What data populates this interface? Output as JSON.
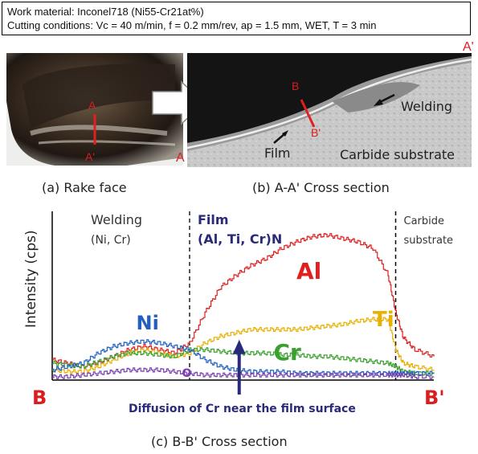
{
  "header": {
    "line1": "Work material:  Inconel718 (Ni55-Cr21at%)",
    "line2": "Cutting conditions: Vc = 40 m/min, f = 0.2 mm/rev, ap = 1.5 mm, WET, T = 3 min"
  },
  "panel_a": {
    "label_a": "A",
    "label_a_prime": "A'",
    "caption": "(a) Rake face"
  },
  "panel_b": {
    "label_a_left": "A",
    "label_a_prime_right": "A'",
    "label_b": "B",
    "label_b_prime": "B'",
    "welding": "Welding",
    "film": "Film",
    "substrate": "Carbide substrate",
    "caption": "(b) A-A' Cross section"
  },
  "chart_data": {
    "type": "line",
    "title": "",
    "xlabel": "",
    "ylabel": "Intensity (cps)",
    "x_start_label": "B",
    "x_end_label": "B'",
    "regions": [
      {
        "name": "Welding",
        "sub": "(Ni, Cr)",
        "x_from": 0.08,
        "x_to": 0.36
      },
      {
        "name": "Film",
        "sub": "(Al, Ti, Cr)N",
        "x_from": 0.36,
        "x_to": 0.9
      },
      {
        "name": "Carbide",
        "sub": "substrate",
        "x_from": 0.9,
        "x_to": 1.0
      }
    ],
    "series": [
      {
        "name": "Al",
        "color": "#e02020",
        "x": [
          0.0,
          0.04,
          0.08,
          0.12,
          0.16,
          0.2,
          0.24,
          0.28,
          0.32,
          0.36,
          0.4,
          0.44,
          0.48,
          0.52,
          0.56,
          0.6,
          0.64,
          0.68,
          0.72,
          0.76,
          0.8,
          0.84,
          0.88,
          0.9,
          0.92,
          0.95,
          1.0
        ],
        "values": [
          12,
          10,
          8,
          10,
          14,
          18,
          20,
          18,
          16,
          22,
          40,
          55,
          62,
          68,
          72,
          78,
          82,
          85,
          86,
          84,
          82,
          78,
          62,
          40,
          25,
          18,
          14
        ]
      },
      {
        "name": "Ti",
        "color": "#e8b000",
        "x": [
          0.0,
          0.04,
          0.08,
          0.12,
          0.16,
          0.2,
          0.24,
          0.28,
          0.32,
          0.36,
          0.4,
          0.44,
          0.48,
          0.52,
          0.56,
          0.6,
          0.64,
          0.68,
          0.72,
          0.76,
          0.8,
          0.84,
          0.88,
          0.9,
          0.92,
          0.95,
          1.0
        ],
        "values": [
          6,
          5,
          5,
          8,
          12,
          16,
          18,
          16,
          14,
          16,
          22,
          26,
          28,
          30,
          30,
          30,
          30,
          31,
          32,
          33,
          35,
          36,
          36,
          18,
          10,
          8,
          6
        ]
      },
      {
        "name": "Cr",
        "color": "#3aa030",
        "x": [
          0.0,
          0.04,
          0.08,
          0.12,
          0.16,
          0.2,
          0.24,
          0.28,
          0.32,
          0.36,
          0.4,
          0.44,
          0.48,
          0.52,
          0.56,
          0.6,
          0.64,
          0.68,
          0.72,
          0.76,
          0.8,
          0.84,
          0.88,
          0.9,
          0.92,
          0.95,
          1.0
        ],
        "values": [
          10,
          9,
          8,
          11,
          14,
          16,
          16,
          15,
          14,
          18,
          18,
          17,
          16,
          16,
          16,
          15,
          15,
          14,
          14,
          13,
          12,
          11,
          10,
          8,
          5,
          4,
          4
        ]
      },
      {
        "name": "Ni",
        "color": "#2060c0",
        "x": [
          0.0,
          0.04,
          0.08,
          0.12,
          0.16,
          0.2,
          0.24,
          0.28,
          0.32,
          0.36,
          0.4,
          0.44,
          0.48,
          0.52,
          0.56,
          0.6,
          0.64,
          0.68,
          0.72,
          0.76,
          0.8,
          0.84,
          0.88,
          0.9,
          0.92,
          0.95,
          1.0
        ],
        "values": [
          6,
          8,
          10,
          16,
          20,
          22,
          23,
          22,
          20,
          18,
          12,
          8,
          6,
          5,
          5,
          5,
          4,
          4,
          4,
          4,
          4,
          4,
          4,
          4,
          4,
          4,
          4
        ]
      },
      {
        "name": "O",
        "color": "#7a40b0",
        "x": [
          0.0,
          0.04,
          0.08,
          0.12,
          0.16,
          0.2,
          0.24,
          0.28,
          0.32,
          0.36,
          0.4,
          0.44,
          0.48,
          0.52,
          0.56,
          0.6,
          0.64,
          0.68,
          0.72,
          0.76,
          0.8,
          0.84,
          0.88,
          0.9,
          0.92,
          0.95,
          1.0
        ],
        "values": [
          2,
          2,
          3,
          4,
          5,
          6,
          6,
          6,
          5,
          4,
          3,
          3,
          3,
          3,
          3,
          3,
          3,
          3,
          3,
          3,
          3,
          3,
          3,
          3,
          3,
          2,
          2
        ]
      }
    ],
    "annotation": "Diffusion of Cr near the film surface",
    "ylim": [
      0,
      100
    ],
    "xlim": [
      0,
      1
    ]
  },
  "caption_c": "(c) B-B' Cross section"
}
